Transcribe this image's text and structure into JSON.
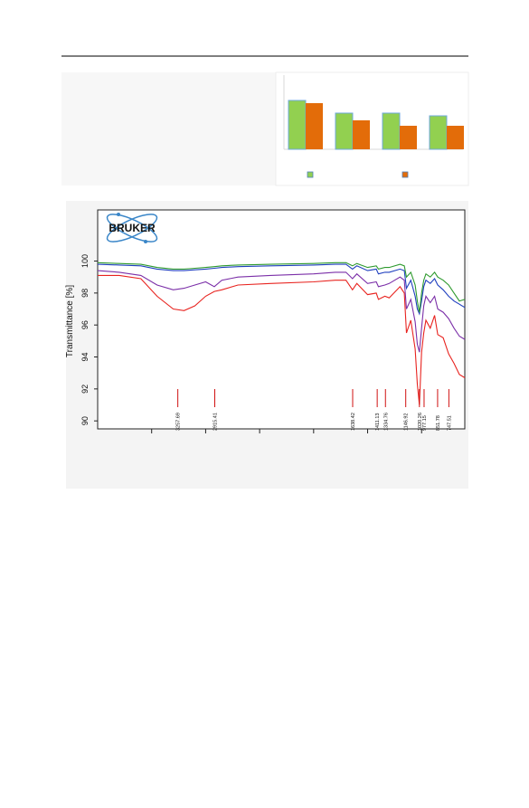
{
  "chart_data": [
    {
      "type": "bar",
      "categories": [
        null,
        null,
        null,
        null
      ],
      "series": [
        {
          "color": "#92d050",
          "values": [
            54,
            40,
            40,
            37
          ]
        },
        {
          "color": "#e36c09",
          "values": [
            51,
            32,
            26,
            26
          ]
        }
      ]
    },
    {
      "type": "line",
      "logo": "BRUKER",
      "ylabel": "Transmittance [%]",
      "x": [
        4000,
        3800,
        3600,
        3450,
        3300,
        3200,
        3100,
        3000,
        2920,
        2850,
        2700,
        2400,
        2000,
        1800,
        1700,
        1640,
        1600,
        1500,
        1420,
        1400,
        1340,
        1300,
        1200,
        1160,
        1140,
        1100,
        1060,
        1040,
        1020,
        1000,
        980,
        960,
        920,
        880,
        850,
        800,
        750,
        700,
        650,
        600
      ],
      "xlim": [
        4000,
        600
      ],
      "xticks": [
        3500,
        3000,
        2500,
        2000,
        1500,
        1000
      ],
      "ylim": [
        89.5,
        103.2
      ],
      "yticks": [
        90,
        92,
        94,
        96,
        98,
        100
      ],
      "series": [
        {
          "color": "#e8231f",
          "values": [
            99.1,
            99.1,
            98.9,
            97.8,
            97.0,
            96.9,
            97.2,
            97.8,
            98.1,
            98.2,
            98.5,
            98.6,
            98.7,
            98.8,
            98.8,
            98.2,
            98.6,
            97.9,
            98.0,
            97.6,
            97.8,
            97.7,
            98.4,
            98.0,
            95.5,
            96.3,
            94.5,
            92.3,
            91.0,
            94.3,
            95.5,
            96.3,
            95.8,
            96.6,
            95.4,
            95.2,
            94.2,
            93.6,
            92.9,
            92.7
          ]
        },
        {
          "color": "#7b2fa8",
          "values": [
            99.4,
            99.3,
            99.1,
            98.5,
            98.2,
            98.3,
            98.5,
            98.7,
            98.4,
            98.8,
            99.0,
            99.1,
            99.2,
            99.3,
            99.3,
            98.9,
            99.2,
            98.6,
            98.7,
            98.4,
            98.5,
            98.6,
            99.0,
            98.8,
            97.0,
            97.6,
            96.2,
            94.8,
            94.3,
            95.8,
            97.2,
            97.8,
            97.4,
            97.8,
            97.0,
            96.8,
            96.4,
            95.8,
            95.3,
            95.1
          ]
        },
        {
          "color": "#1f3fbf",
          "values": [
            99.8,
            99.75,
            99.7,
            99.5,
            99.4,
            99.4,
            99.45,
            99.5,
            99.55,
            99.6,
            99.65,
            99.7,
            99.75,
            99.8,
            99.8,
            99.5,
            99.7,
            99.4,
            99.5,
            99.2,
            99.3,
            99.3,
            99.5,
            99.4,
            98.3,
            98.8,
            97.8,
            97.0,
            96.7,
            97.5,
            98.4,
            98.8,
            98.6,
            98.9,
            98.5,
            98.2,
            97.8,
            97.5,
            97.3,
            97.1
          ]
        },
        {
          "color": "#2e9a2e",
          "values": [
            99.9,
            99.85,
            99.8,
            99.6,
            99.5,
            99.5,
            99.55,
            99.6,
            99.65,
            99.7,
            99.75,
            99.8,
            99.85,
            99.9,
            99.9,
            99.7,
            99.85,
            99.6,
            99.7,
            99.5,
            99.6,
            99.6,
            99.8,
            99.7,
            99.0,
            99.3,
            98.5,
            97.5,
            96.8,
            98.0,
            98.8,
            99.2,
            99.0,
            99.3,
            99.0,
            98.8,
            98.5,
            98.0,
            97.5,
            97.6
          ]
        }
      ],
      "peaks": {
        "color": "#d01010",
        "x": [
          3257.69,
          2915.41,
          1638.42,
          1411.13,
          1334.76,
          1146.92,
          1020.26,
          977.15,
          851.78,
          747.51
        ]
      }
    }
  ]
}
